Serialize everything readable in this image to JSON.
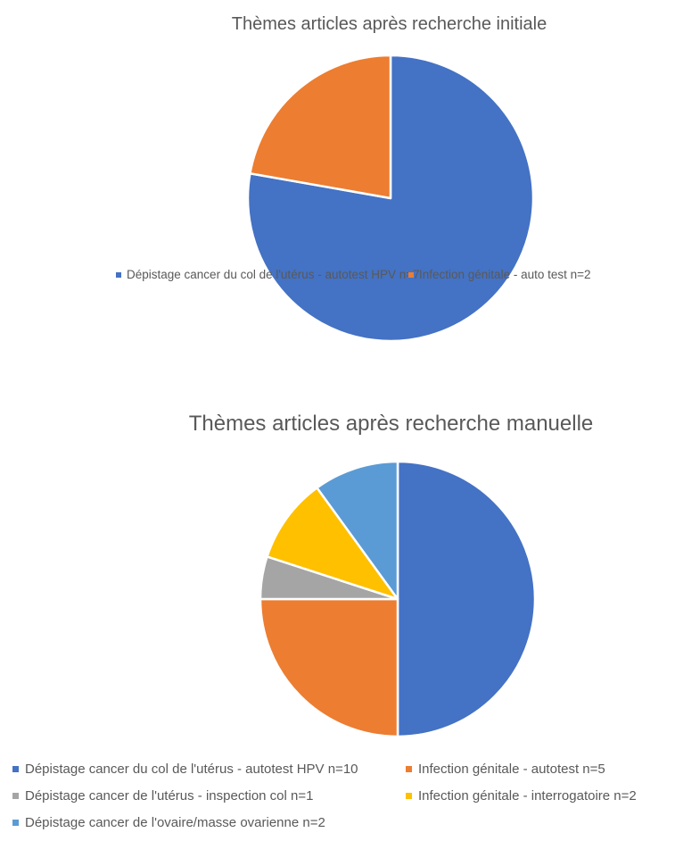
{
  "chart_data": [
    {
      "type": "pie",
      "title": "Thèmes articles après recherche initiale",
      "categories": [
        "Dépistage cancer du col de l'utérus - autotest HPV n=7",
        "Infection génitale - auto test n=2"
      ],
      "values": [
        7,
        2
      ],
      "colors": [
        "#4472C4",
        "#ED7D31"
      ],
      "legend": "bottom"
    },
    {
      "type": "pie",
      "title": "Thèmes articles après recherche manuelle",
      "categories": [
        "Dépistage cancer du col de l'utérus - autotest HPV n=10",
        "Infection génitale - autotest n=5",
        "Dépistage cancer de l'utérus - inspection col n=1",
        "Infection génitale - interrogatoire n=2",
        "Dépistage cancer de l'ovaire/masse ovarienne n=2"
      ],
      "values": [
        10,
        5,
        1,
        2,
        2
      ],
      "colors": [
        "#4472C4",
        "#ED7D31",
        "#A5A5A5",
        "#FFC000",
        "#5B9BD5"
      ],
      "legend": "bottom"
    }
  ]
}
